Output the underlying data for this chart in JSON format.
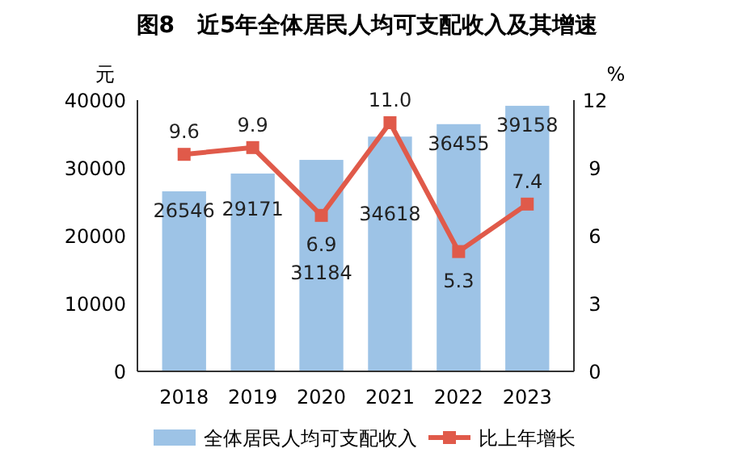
{
  "chart_data": {
    "type": "bar",
    "title": "图8　近5年全体居民人均可支配收入及其增速",
    "categories": [
      "2018",
      "2019",
      "2020",
      "2021",
      "2022",
      "2023"
    ],
    "ylabel": "元",
    "y2label": "%",
    "ylim": [
      0,
      40000
    ],
    "yticks": [
      0,
      10000,
      20000,
      30000,
      40000
    ],
    "y2lim": [
      0,
      12
    ],
    "y2ticks": [
      0,
      3,
      6,
      9,
      12
    ],
    "legend": "bottom",
    "marker": "square",
    "series": [
      {
        "name": "全体居民人均可支配收入",
        "color": "#9dc3e6",
        "values": [
          26546,
          29171,
          31184,
          34618,
          36455,
          39158
        ],
        "value_labels": [
          "26546",
          "29171",
          "31184",
          "34618",
          "36455",
          "39158"
        ]
      },
      {
        "name": "比上年增长",
        "type": "line",
        "axis": "y2",
        "color": "#e05a4a",
        "values": [
          9.6,
          9.9,
          6.9,
          11.0,
          5.3,
          7.4
        ],
        "value_labels": [
          "9.6",
          "9.9",
          "6.9",
          "11.0",
          "5.3",
          "7.4"
        ]
      }
    ]
  }
}
